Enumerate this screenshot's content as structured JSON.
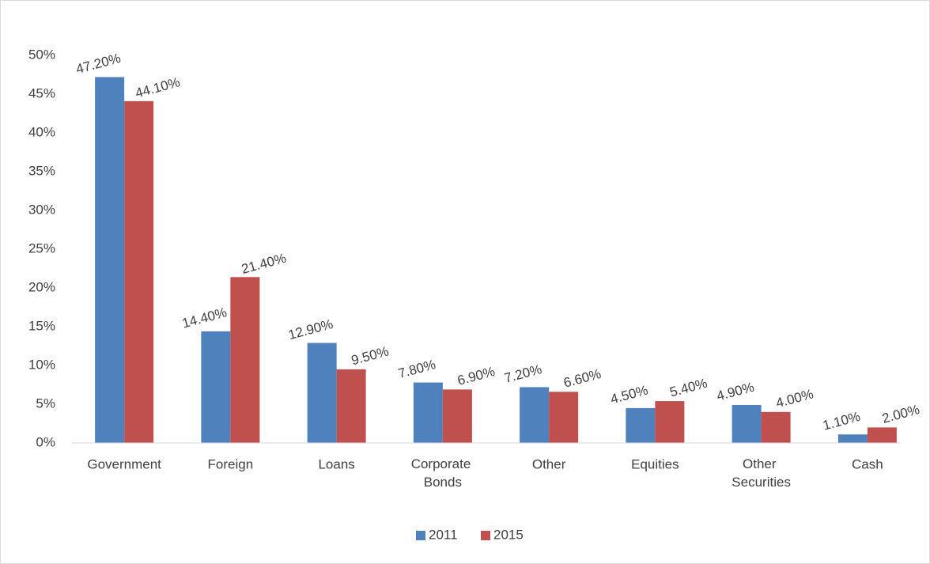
{
  "chart_data": {
    "type": "bar",
    "categories": [
      "Government",
      "Foreign",
      "Loans",
      "Corporate Bonds",
      "Other",
      "Equities",
      "Other Securities",
      "Cash"
    ],
    "series": [
      {
        "name": "2011",
        "color": "#4f81bd",
        "values": [
          47.2,
          14.4,
          12.9,
          7.8,
          7.2,
          4.5,
          4.9,
          1.1
        ],
        "value_labels": [
          "47.20%",
          "14.40%",
          "12.90%",
          "7.80%",
          "7.20%",
          "4.50%",
          "4.90%",
          "1.10%"
        ]
      },
      {
        "name": "2015",
        "color": "#c0504d",
        "values": [
          44.1,
          21.4,
          9.5,
          6.9,
          6.6,
          5.4,
          4.0,
          2.0
        ],
        "value_labels": [
          "44.10%",
          "21.40%",
          "9.50%",
          "6.90%",
          "6.60%",
          "5.40%",
          "4.00%",
          "2.00%"
        ]
      }
    ],
    "ylim": [
      0,
      50
    ],
    "yticks": [
      {
        "value": 0,
        "label": "0%"
      },
      {
        "value": 5,
        "label": "5%"
      },
      {
        "value": 10,
        "label": "10%"
      },
      {
        "value": 15,
        "label": "15%"
      },
      {
        "value": 20,
        "label": "20%"
      },
      {
        "value": 25,
        "label": "25%"
      },
      {
        "value": 30,
        "label": "30%"
      },
      {
        "value": 35,
        "label": "35%"
      },
      {
        "value": 40,
        "label": "40%"
      },
      {
        "value": 45,
        "label": "45%"
      },
      {
        "value": 50,
        "label": "50%"
      }
    ],
    "grid": false,
    "legend": "bottom"
  }
}
